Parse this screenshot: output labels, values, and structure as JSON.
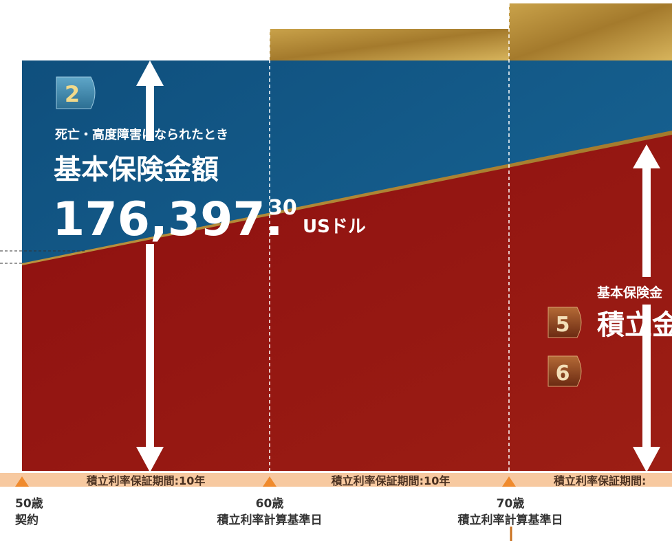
{
  "left_panel": {
    "badge": "2",
    "condition": "死亡・高度障害になられたとき",
    "label": "基本保険金額",
    "amount": "176,397.",
    "decimal": "30",
    "unit": "USドル"
  },
  "right_panel": {
    "caption": "基本保険金",
    "label": "積立金",
    "badges": [
      "5",
      "6"
    ]
  },
  "timeline": {
    "periods": [
      "積立利率保証期間:10年",
      "積立利率保証期間:10年",
      "積立利率保証期間:"
    ],
    "points": [
      {
        "age": "50歳",
        "event": "契約"
      },
      {
        "age": "60歳",
        "event": "積立利率計算基準日"
      },
      {
        "age": "70歳",
        "event": "積立利率計算基準日"
      }
    ]
  }
}
